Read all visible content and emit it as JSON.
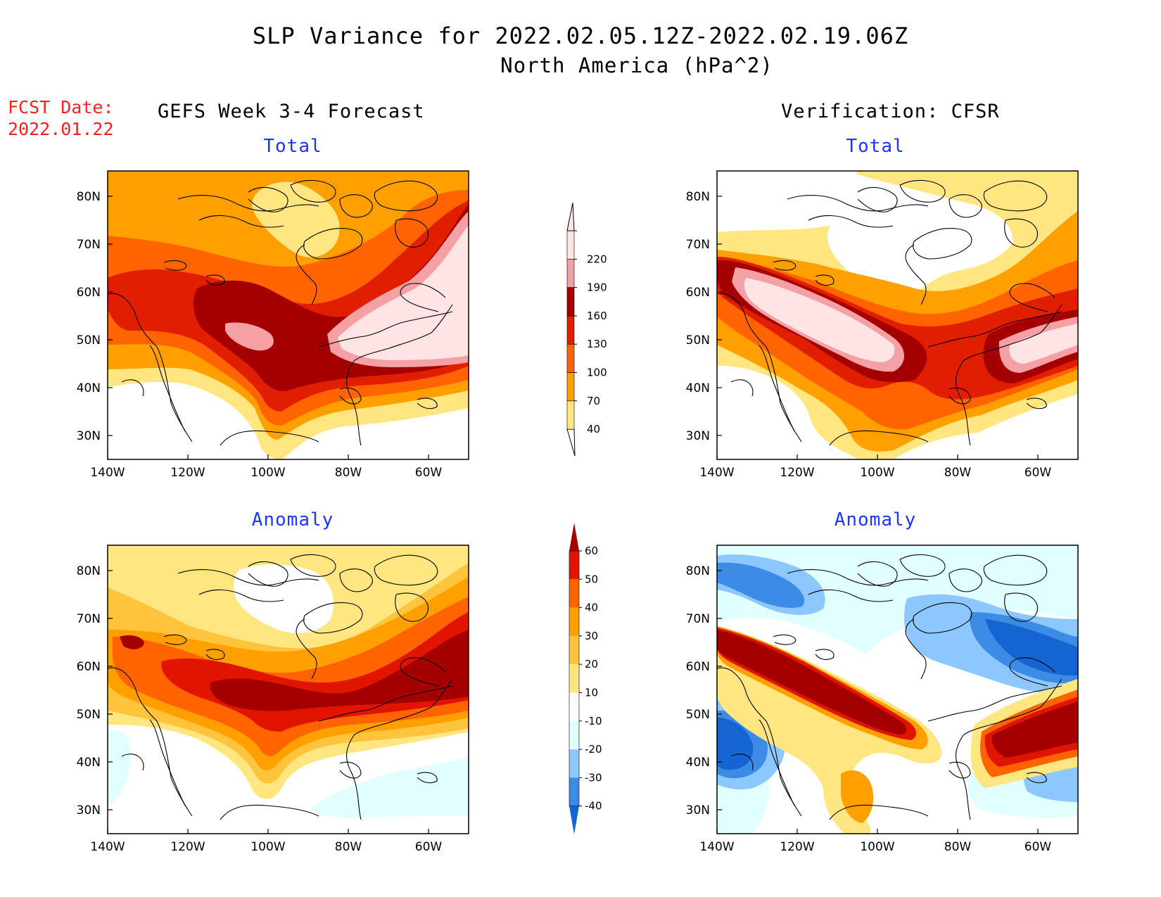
{
  "header": {
    "title": "SLP Variance for 2022.02.05.12Z-2022.02.19.06Z",
    "subtitle": "North America (hPa^2)",
    "fcst_label": "FCST Date:",
    "fcst_date": "2022.01.22",
    "left_column": "GEFS Week 3-4 Forecast",
    "right_column": "Verification: CFSR"
  },
  "panels": {
    "fcst_total": {
      "title": "Total"
    },
    "verif_total": {
      "title": "Total"
    },
    "fcst_anom": {
      "title": "Anomaly"
    },
    "verif_anom": {
      "title": "Anomaly"
    }
  },
  "axes": {
    "lat_ticks": [
      "80N",
      "70N",
      "60N",
      "50N",
      "40N",
      "30N"
    ],
    "lon_ticks": [
      "140W",
      "120W",
      "100W",
      "80W",
      "60W"
    ]
  },
  "colorbars": {
    "total": {
      "levels": [
        "40",
        "70",
        "100",
        "130",
        "160",
        "190",
        "220"
      ],
      "colors": [
        "#ffe680",
        "#ffa000",
        "#ff6400",
        "#e11e00",
        "#a50000",
        "#f4a0a4",
        "#ffe4e4"
      ]
    },
    "anomaly": {
      "levels": [
        "-40",
        "-30",
        "-20",
        "-10",
        "10",
        "20",
        "30",
        "40",
        "50",
        "60"
      ],
      "colors": [
        "#1464d2",
        "#3c8ce6",
        "#8cc8ff",
        "#e1ffff",
        "#ffffff",
        "#ffe680",
        "#ffc33c",
        "#ffa000",
        "#ff6400",
        "#e11400",
        "#a50000"
      ]
    }
  }
}
